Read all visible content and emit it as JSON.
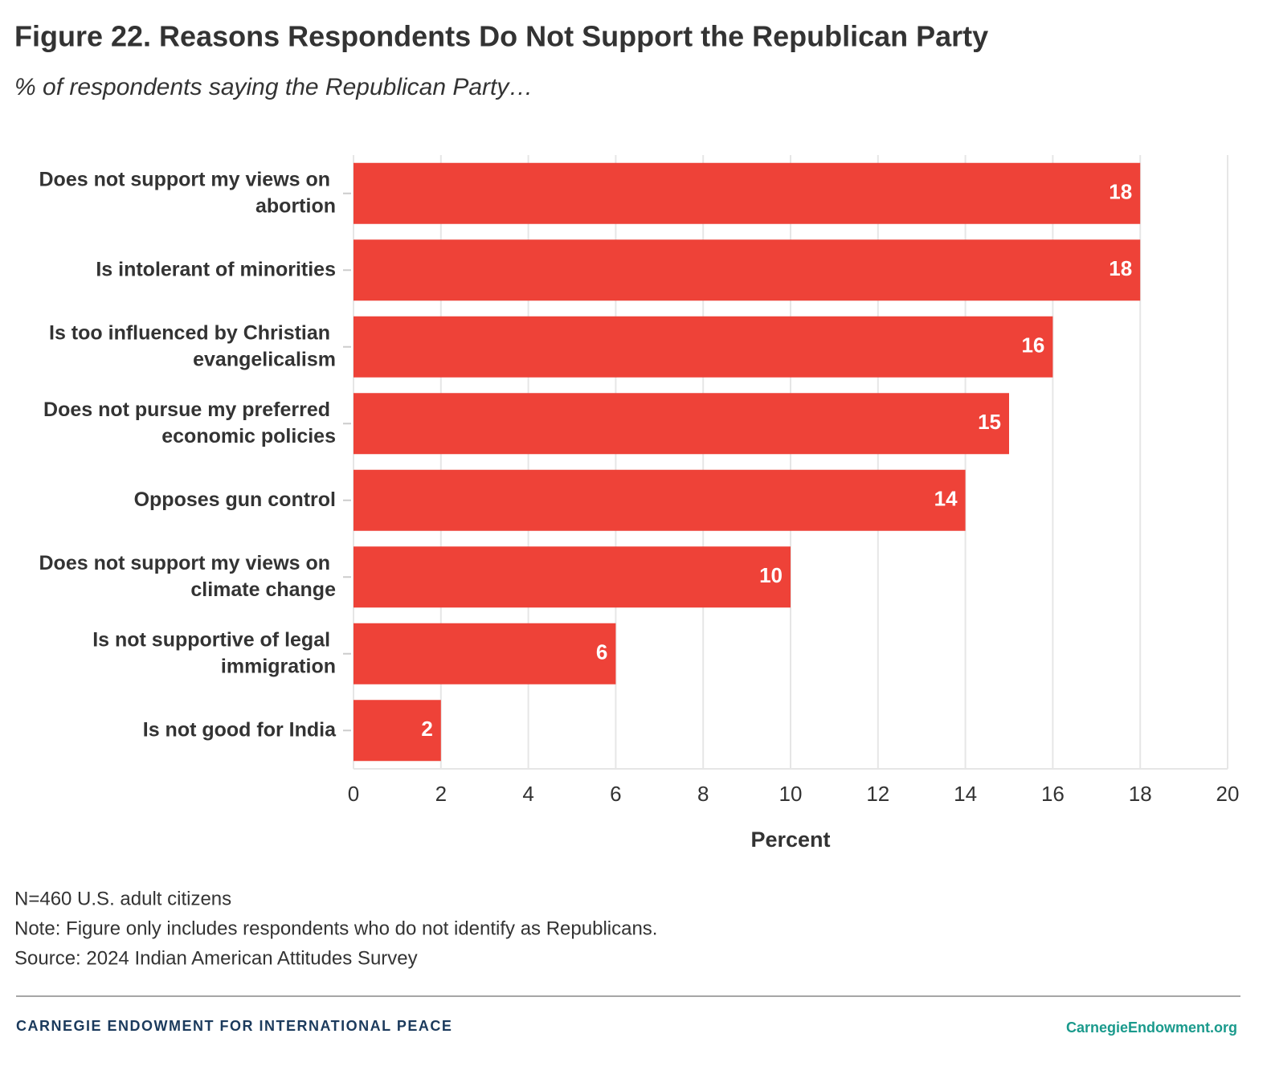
{
  "chart_data": {
    "type": "barh",
    "title": "Figure 22. Reasons Respondents Do Not Support the Republican Party",
    "subtitle": "% of respondents saying the Republican Party…",
    "x_label": "Percent",
    "categories": [
      "Does not support my views on abortion",
      "Is intolerant of minorities",
      "Is too influenced by Christian evangelicalism",
      "Does not pursue my preferred economic policies",
      "Opposes gun control",
      "Does not support my views on climate change",
      "Is not supportive of legal immigration",
      "Is not good for India"
    ],
    "values": [
      18,
      18,
      16,
      15,
      14,
      10,
      6,
      2
    ],
    "color": "#ee4238",
    "xlim": [
      0,
      20
    ],
    "xticks": [
      0,
      2,
      4,
      6,
      8,
      10,
      12,
      14,
      16,
      18,
      20
    ],
    "grid": true,
    "notes": [
      "N=460 U.S. adult citizens",
      "Note: Figure only includes respondents who do not identify as Republicans.",
      "Source: 2024 Indian American Attitudes Survey"
    ]
  },
  "footer": {
    "brand": "CARNEGIE ENDOWMENT FOR INTERNATIONAL PEACE",
    "url": "CarnegieEndowment.org"
  }
}
